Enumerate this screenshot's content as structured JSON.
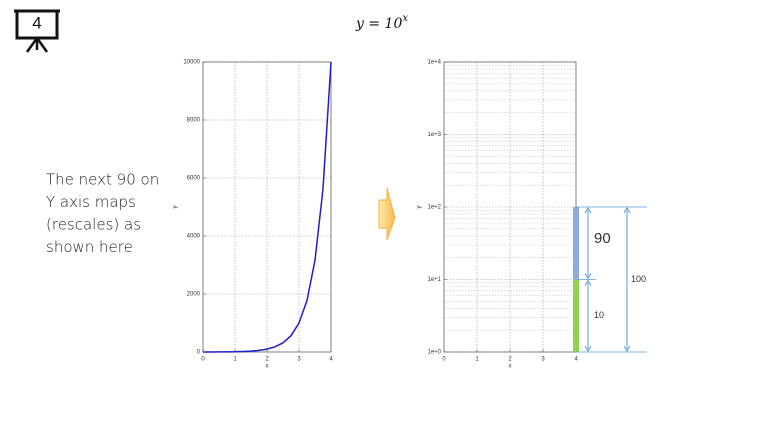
{
  "slide_number": "4",
  "title": {
    "base": "y = 10",
    "exponent": "x"
  },
  "note": [
    "The next 90 on",
    "Y axis maps",
    "(rescales) as",
    "shown here"
  ],
  "chart_data": [
    {
      "type": "line",
      "color": "#1f1fc8",
      "x": [
        0,
        0.25,
        0.5,
        0.75,
        1,
        1.25,
        1.5,
        1.75,
        2,
        2.25,
        2.5,
        2.75,
        3,
        3.25,
        3.5,
        3.75,
        4
      ],
      "values": [
        1,
        1.78,
        3.16,
        5.62,
        10,
        17.8,
        31.6,
        56.2,
        100,
        178,
        316,
        562,
        1000,
        1778,
        3162,
        5623,
        10000
      ],
      "xlim": [
        0,
        4
      ],
      "xticks": [
        0,
        1,
        2,
        3,
        4
      ],
      "ylim": [
        0,
        10000
      ],
      "yticks": [
        0,
        2000,
        4000,
        6000,
        8000,
        10000
      ],
      "x_label": "x",
      "y_label": "y",
      "grid": true
    },
    {
      "type": "stacked-bar",
      "log_y": true,
      "grid": true,
      "minor_grid": true,
      "bar_x": 4,
      "values": [
        10,
        90
      ],
      "colors": [
        "#92d050",
        "#8faadc"
      ],
      "label_colors": [
        "#333333",
        "#ff0000"
      ],
      "total": 100,
      "bracket_color": "#5b9bd5",
      "xlim": [
        0,
        4
      ],
      "xticks": [
        0,
        1,
        2,
        3,
        4
      ],
      "ylim": [
        1,
        10000
      ],
      "yticks": [
        {
          "value": 1,
          "label": "1e+0"
        },
        {
          "value": 10,
          "label": "1e+1"
        },
        {
          "value": 100,
          "label": "1e+2"
        },
        {
          "value": 1000,
          "label": "1e+3"
        },
        {
          "value": 10000,
          "label": "1e+4"
        }
      ],
      "x_label": "x",
      "y_label": "y"
    }
  ]
}
